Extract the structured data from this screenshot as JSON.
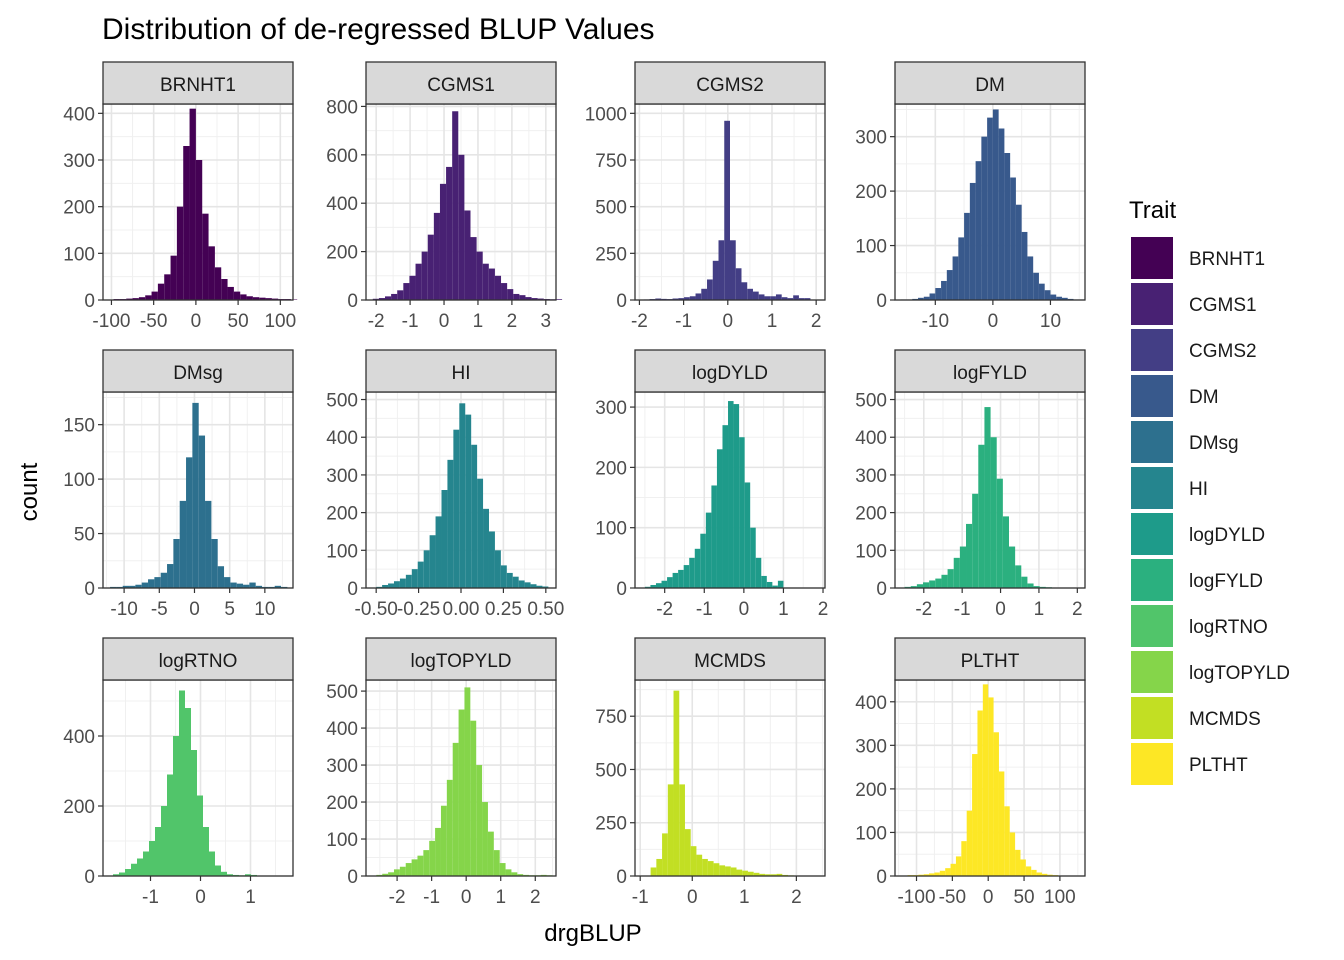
{
  "chart_data": {
    "type": "bar",
    "title": "Distribution of de-regressed BLUP Values",
    "xlabel": "drgBLUP",
    "ylabel": "count",
    "grid": true,
    "legend": {
      "title": "Trait",
      "placement": "right",
      "entries": [
        "BRNHT1",
        "CGMS1",
        "CGMS2",
        "DM",
        "DMsg",
        "HI",
        "logDYLD",
        "logFYLD",
        "logRTNO",
        "logTOPYLD",
        "MCMDS",
        "PLTHT"
      ]
    },
    "colors": [
      "#440154",
      "#482173",
      "#433E85",
      "#38598C",
      "#2D708E",
      "#25858E",
      "#1E9B8A",
      "#2BB07F",
      "#51C56A",
      "#85D54A",
      "#C2DF23",
      "#FDE725"
    ],
    "panels": [
      {
        "name": "BRNHT1",
        "xlim": [
          -110,
          115
        ],
        "ylim": [
          0,
          420
        ],
        "xticks": [
          -100,
          -50,
          0,
          50,
          100
        ],
        "xtick_labels": [
          "-100",
          "-50",
          "0",
          "50",
          "100"
        ],
        "yticks": [
          0,
          100,
          200,
          300,
          400
        ],
        "ytick_labels": [
          "0",
          "100",
          "200",
          "300",
          "400"
        ],
        "bin_start": -105,
        "bin_width": 7.5,
        "counts": [
          1,
          2,
          2,
          3,
          4,
          6,
          10,
          18,
          35,
          55,
          95,
          200,
          330,
          410,
          300,
          185,
          115,
          70,
          45,
          28,
          18,
          12,
          8,
          6,
          5,
          4,
          3,
          2,
          2,
          1
        ]
      },
      {
        "name": "CGMS1",
        "xlim": [
          -2.3,
          3.3
        ],
        "ylim": [
          0,
          810
        ],
        "xticks": [
          -2,
          -1,
          0,
          1,
          2,
          3
        ],
        "xtick_labels": [
          "-2",
          "-1",
          "0",
          "1",
          "2",
          "3"
        ],
        "yticks": [
          0,
          200,
          400,
          600,
          800
        ],
        "ytick_labels": [
          "0",
          "200",
          "400",
          "600",
          "800"
        ],
        "bin_start": -2.1,
        "bin_width": 0.18,
        "counts": [
          5,
          8,
          15,
          25,
          40,
          70,
          100,
          150,
          200,
          270,
          360,
          480,
          550,
          780,
          600,
          370,
          260,
          200,
          150,
          130,
          100,
          70,
          45,
          25,
          20,
          12,
          8,
          6,
          4,
          3,
          3
        ]
      },
      {
        "name": "CGMS2",
        "xlim": [
          -2.1,
          2.2
        ],
        "ylim": [
          0,
          1050
        ],
        "xticks": [
          -2,
          -1,
          0,
          1,
          2
        ],
        "xtick_labels": [
          "-2",
          "-1",
          "0",
          "1",
          "2"
        ],
        "yticks": [
          0,
          250,
          500,
          750,
          1000
        ],
        "ytick_labels": [
          "0",
          "250",
          "500",
          "750",
          "1000"
        ],
        "bin_start": -1.9,
        "bin_width": 0.13,
        "counts": [
          3,
          5,
          8,
          6,
          5,
          8,
          10,
          15,
          20,
          35,
          60,
          110,
          210,
          320,
          960,
          320,
          170,
          95,
          60,
          45,
          30,
          20,
          20,
          30,
          15,
          10,
          25,
          10,
          10
        ]
      },
      {
        "name": "DM",
        "xlim": [
          -17,
          16
        ],
        "ylim": [
          0,
          360
        ],
        "xticks": [
          -10,
          0,
          10
        ],
        "xtick_labels": [
          "-10",
          "0",
          "10"
        ],
        "yticks": [
          0,
          100,
          200,
          300
        ],
        "ytick_labels": [
          "0",
          "100",
          "200",
          "300"
        ],
        "bin_start": -16,
        "bin_width": 1,
        "counts": [
          1,
          1,
          2,
          4,
          6,
          12,
          22,
          35,
          55,
          80,
          115,
          160,
          215,
          255,
          300,
          335,
          350,
          315,
          270,
          225,
          175,
          125,
          80,
          50,
          30,
          18,
          10,
          6,
          4,
          2,
          1,
          1
        ]
      },
      {
        "name": "DMsg",
        "xlim": [
          -13,
          14
        ],
        "ylim": [
          0,
          180
        ],
        "xticks": [
          -10,
          -5,
          0,
          5,
          10
        ],
        "xtick_labels": [
          "-10",
          "-5",
          "0",
          "5",
          "10"
        ],
        "yticks": [
          0,
          50,
          100,
          150
        ],
        "ytick_labels": [
          "0",
          "50",
          "100",
          "150"
        ],
        "bin_start": -12,
        "bin_width": 0.9,
        "counts": [
          1,
          1,
          2,
          2,
          3,
          5,
          8,
          10,
          14,
          22,
          45,
          80,
          120,
          170,
          140,
          80,
          45,
          20,
          10,
          5,
          4,
          3,
          5,
          2,
          1,
          1,
          2,
          1
        ]
      },
      {
        "name": "HI",
        "xlim": [
          -0.56,
          0.56
        ],
        "ylim": [
          0,
          520
        ],
        "xticks": [
          -0.5,
          -0.25,
          0,
          0.25,
          0.5
        ],
        "xtick_labels": [
          "-0.50",
          "-0.25",
          "0.00",
          "0.25",
          "0.50"
        ],
        "yticks": [
          0,
          100,
          200,
          300,
          400,
          500
        ],
        "ytick_labels": [
          "0",
          "100",
          "200",
          "300",
          "400",
          "500"
        ],
        "bin_start": -0.5,
        "bin_width": 0.035,
        "counts": [
          3,
          8,
          12,
          18,
          25,
          35,
          50,
          70,
          100,
          140,
          190,
          260,
          340,
          420,
          490,
          460,
          380,
          290,
          210,
          150,
          100,
          60,
          40,
          30,
          20,
          15,
          10,
          6,
          4
        ]
      },
      {
        "name": "logDYLD",
        "xlim": [
          -2.75,
          2.05
        ],
        "ylim": [
          0,
          325
        ],
        "xticks": [
          -2,
          -1,
          0,
          1,
          2
        ],
        "xtick_labels": [
          "-2",
          "-1",
          "0",
          "1",
          "2"
        ],
        "yticks": [
          0,
          100,
          200,
          300
        ],
        "ytick_labels": [
          "0",
          "100",
          "200",
          "300"
        ],
        "bin_start": -2.5,
        "bin_width": 0.14,
        "counts": [
          2,
          5,
          8,
          12,
          18,
          25,
          30,
          38,
          50,
          65,
          90,
          125,
          170,
          230,
          270,
          310,
          305,
          250,
          175,
          100,
          50,
          20,
          10,
          4,
          12
        ]
      },
      {
        "name": "logFYLD",
        "xlim": [
          -2.75,
          2.2
        ],
        "ylim": [
          0,
          520
        ],
        "xticks": [
          -2,
          -1,
          0,
          1,
          2
        ],
        "xtick_labels": [
          "-2",
          "-1",
          "0",
          "1",
          "2"
        ],
        "yticks": [
          0,
          100,
          200,
          300,
          400,
          500
        ],
        "ytick_labels": [
          "0",
          "100",
          "200",
          "300",
          "400",
          "500"
        ],
        "bin_start": -2.5,
        "bin_width": 0.16,
        "counts": [
          3,
          5,
          10,
          15,
          20,
          25,
          35,
          50,
          80,
          110,
          170,
          250,
          380,
          480,
          400,
          290,
          190,
          110,
          60,
          30,
          12,
          5,
          3,
          2
        ]
      },
      {
        "name": "logRTNO",
        "xlim": [
          -1.95,
          1.85
        ],
        "ylim": [
          0,
          560
        ],
        "xticks": [
          -1,
          0,
          1
        ],
        "xtick_labels": [
          "-1",
          "0",
          "1"
        ],
        "yticks": [
          0,
          200,
          400
        ],
        "ytick_labels": [
          "0",
          "200",
          "400"
        ],
        "bin_start": -1.75,
        "bin_width": 0.12,
        "counts": [
          5,
          10,
          20,
          35,
          50,
          70,
          100,
          140,
          200,
          290,
          400,
          530,
          480,
          360,
          230,
          140,
          70,
          30,
          12,
          5,
          3,
          2,
          5,
          3
        ]
      },
      {
        "name": "logTOPYLD",
        "xlim": [
          -2.9,
          2.6
        ],
        "ylim": [
          0,
          530
        ],
        "xticks": [
          -2,
          -1,
          0,
          1,
          2
        ],
        "xtick_labels": [
          "-2",
          "-1",
          "0",
          "1",
          "2"
        ],
        "yticks": [
          0,
          100,
          200,
          300,
          400,
          500
        ],
        "ytick_labels": [
          "0",
          "100",
          "200",
          "300",
          "400",
          "500"
        ],
        "bin_start": -2.6,
        "bin_width": 0.17,
        "counts": [
          3,
          6,
          10,
          18,
          25,
          35,
          45,
          55,
          70,
          95,
          130,
          190,
          260,
          360,
          450,
          510,
          420,
          300,
          200,
          120,
          70,
          35,
          18,
          10,
          5,
          3,
          2,
          2,
          3,
          2
        ]
      },
      {
        "name": "MCMDS",
        "xlim": [
          -1.1,
          2.55
        ],
        "ylim": [
          0,
          920
        ],
        "xticks": [
          -1,
          0,
          1,
          2
        ],
        "xtick_labels": [
          "-1",
          "0",
          "1",
          "2"
        ],
        "yticks": [
          0,
          250,
          500,
          750
        ],
        "ytick_labels": [
          "0",
          "250",
          "500",
          "750"
        ],
        "bin_start": -0.8,
        "bin_width": 0.11,
        "counts": [
          40,
          80,
          200,
          430,
          870,
          430,
          220,
          140,
          100,
          80,
          70,
          60,
          50,
          45,
          40,
          30,
          25,
          20,
          15,
          10,
          8,
          8,
          10,
          5,
          3
        ]
      },
      {
        "name": "PLTHT",
        "xlim": [
          -130,
          135
        ],
        "ylim": [
          0,
          450
        ],
        "xticks": [
          -100,
          -50,
          0,
          50,
          100
        ],
        "xtick_labels": [
          "-100",
          "-50",
          "0",
          "50",
          "100"
        ],
        "yticks": [
          0,
          100,
          200,
          300,
          400
        ],
        "ytick_labels": [
          "0",
          "100",
          "200",
          "300",
          "400"
        ],
        "bin_start": -120,
        "bin_width": 7.5,
        "counts": [
          1,
          2,
          2,
          3,
          4,
          6,
          8,
          12,
          18,
          28,
          45,
          80,
          150,
          280,
          380,
          440,
          410,
          330,
          240,
          160,
          100,
          60,
          38,
          22,
          14,
          8,
          5,
          3,
          2,
          1,
          1,
          1
        ]
      }
    ]
  }
}
